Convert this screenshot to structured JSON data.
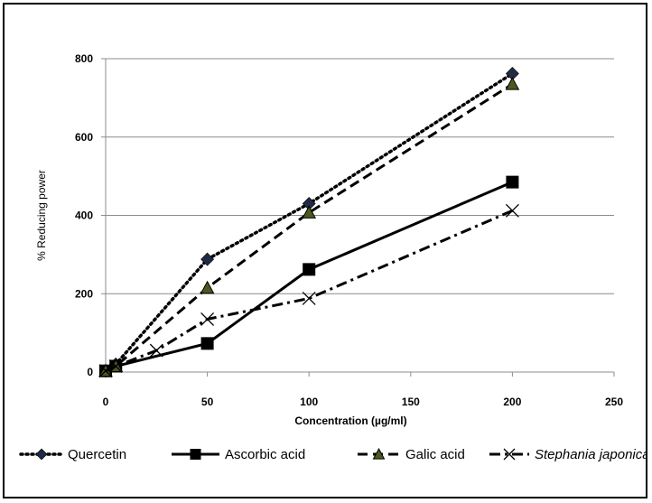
{
  "chart_data": {
    "type": "line",
    "xlabel": "Concentration (µg/ml)",
    "ylabel": "% Reducing power",
    "xlim": [
      0,
      250
    ],
    "ylim": [
      0,
      800
    ],
    "x_ticks": [
      "0",
      "50",
      "100",
      "150",
      "200",
      "250"
    ],
    "y_ticks": [
      "0",
      "200",
      "400",
      "600",
      "800"
    ],
    "grid": "horizontal",
    "legend_position": "bottom",
    "series": [
      {
        "name": "Quercetin",
        "marker": "diamond",
        "line_style": "dotted",
        "color": "#1f2a44",
        "x": [
          0,
          5,
          50,
          100,
          200
        ],
        "y": [
          3,
          20,
          288,
          430,
          762
        ]
      },
      {
        "name": "Ascorbic acid",
        "marker": "square",
        "line_style": "solid",
        "color": "#000000",
        "x": [
          0,
          5,
          50,
          100,
          200
        ],
        "y": [
          3,
          15,
          73,
          262,
          485
        ]
      },
      {
        "name": "Galic acid",
        "marker": "triangle",
        "line_style": "dashed",
        "color": "#4a5a1e",
        "x": [
          0,
          5,
          50,
          100,
          200
        ],
        "y": [
          3,
          15,
          215,
          407,
          735
        ]
      },
      {
        "name": "Stephania japonica",
        "marker": "x",
        "line_style": "dash-dot",
        "color": "#000000",
        "x": [
          0,
          5,
          25,
          50,
          100,
          200
        ],
        "y": [
          3,
          15,
          55,
          135,
          188,
          412
        ]
      }
    ]
  }
}
